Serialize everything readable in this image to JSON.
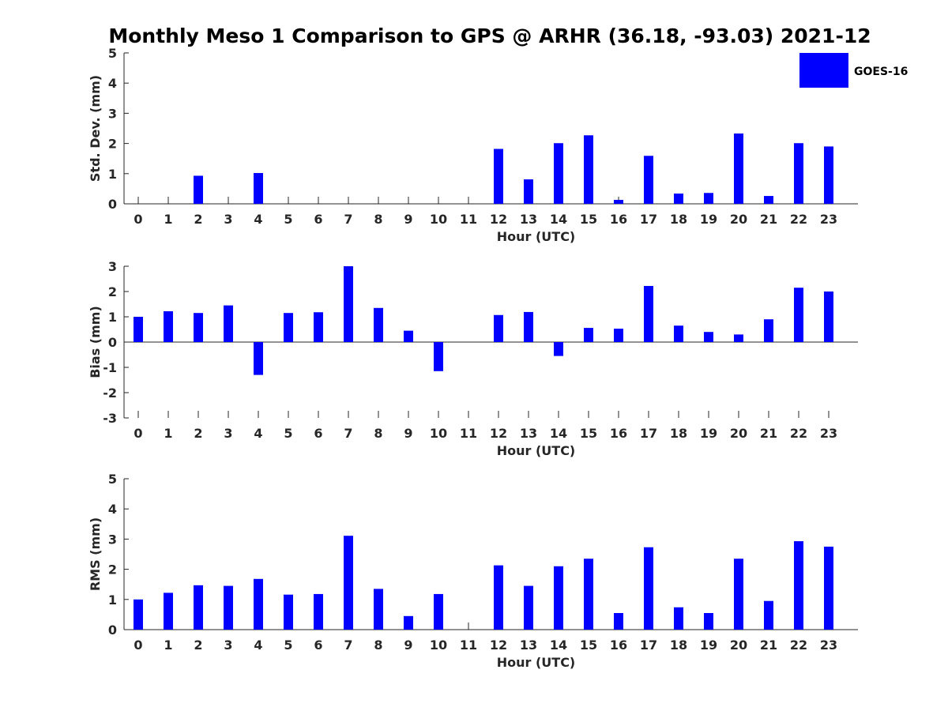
{
  "chart_data": {
    "title": "Monthly Meso 1 Comparison to GPS @ ARHR (36.18, -93.03) 2021-12",
    "legend": {
      "label": "GOES-16",
      "color": "#0000ff",
      "placement": "top-right"
    },
    "panels": [
      {
        "type": "bar",
        "ylabel": "Std. Dev. (mm)",
        "xlabel": "Hour (UTC)",
        "ylim": [
          0,
          5
        ],
        "yticks": [
          0,
          1,
          2,
          3,
          4,
          5
        ],
        "categories": [
          0,
          1,
          2,
          3,
          4,
          5,
          6,
          7,
          8,
          9,
          10,
          11,
          12,
          13,
          14,
          15,
          16,
          17,
          18,
          19,
          20,
          21,
          22,
          23
        ],
        "values": [
          null,
          null,
          0.93,
          null,
          1.02,
          null,
          null,
          null,
          null,
          null,
          null,
          null,
          1.82,
          0.81,
          2.01,
          2.27,
          0.13,
          1.59,
          0.34,
          0.36,
          2.33,
          0.26,
          2.01,
          1.9
        ],
        "series_name": "GOES-16"
      },
      {
        "type": "bar",
        "ylabel": "Bias (mm)",
        "xlabel": "Hour (UTC)",
        "ylim": [
          -3,
          3
        ],
        "yticks": [
          -3,
          -2,
          -1,
          0,
          1,
          2,
          3
        ],
        "categories": [
          0,
          1,
          2,
          3,
          4,
          5,
          6,
          7,
          8,
          9,
          10,
          11,
          12,
          13,
          14,
          15,
          16,
          17,
          18,
          19,
          20,
          21,
          22,
          23
        ],
        "values": [
          1.0,
          1.22,
          1.15,
          1.45,
          -1.3,
          1.15,
          1.18,
          3.0,
          1.35,
          0.45,
          -1.15,
          null,
          1.07,
          1.19,
          -0.55,
          0.56,
          0.53,
          2.22,
          0.65,
          0.4,
          0.3,
          0.9,
          2.15,
          2.0
        ],
        "series_name": "GOES-16"
      },
      {
        "type": "bar",
        "ylabel": "RMS (mm)",
        "xlabel": "Hour (UTC)",
        "ylim": [
          0,
          5
        ],
        "yticks": [
          0,
          1,
          2,
          3,
          4,
          5
        ],
        "categories": [
          0,
          1,
          2,
          3,
          4,
          5,
          6,
          7,
          8,
          9,
          10,
          11,
          12,
          13,
          14,
          15,
          16,
          17,
          18,
          19,
          20,
          21,
          22,
          23
        ],
        "values": [
          1.0,
          1.22,
          1.47,
          1.45,
          1.68,
          1.16,
          1.18,
          3.11,
          1.35,
          0.45,
          1.18,
          null,
          2.13,
          1.45,
          2.1,
          2.35,
          0.55,
          2.73,
          0.74,
          0.55,
          2.35,
          0.95,
          2.93,
          2.75
        ],
        "series_name": "GOES-16"
      }
    ]
  }
}
